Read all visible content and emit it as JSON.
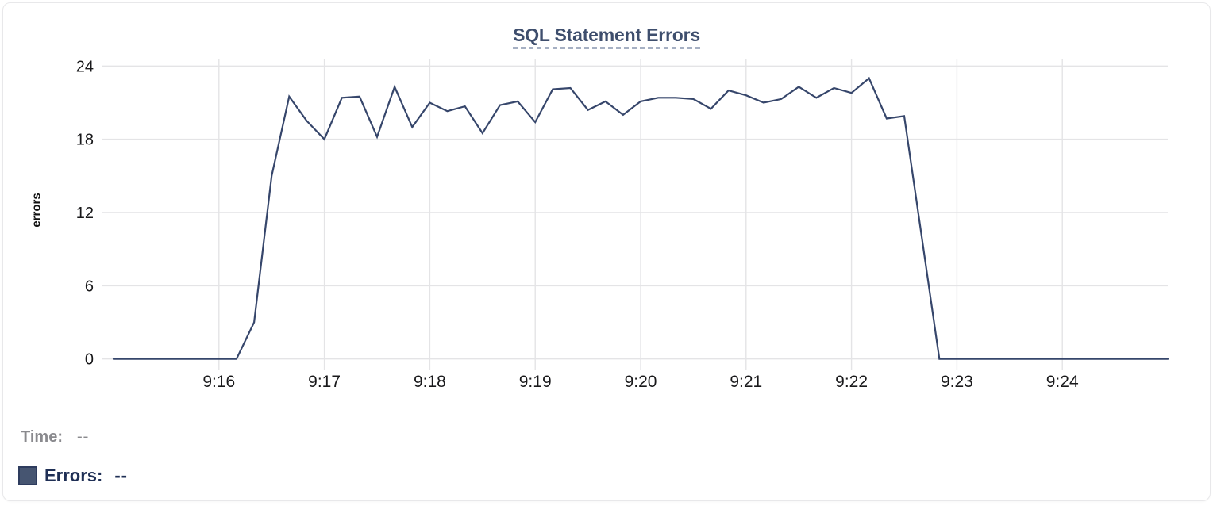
{
  "chart_data": {
    "type": "line",
    "title": "SQL Statement Errors",
    "xlabel": "",
    "ylabel": "errors",
    "ylim": [
      0,
      24
    ],
    "grid": true,
    "y_ticks": [
      0,
      6,
      12,
      18,
      24
    ],
    "x_ticks": [
      {
        "label": "9:16",
        "seconds": 60
      },
      {
        "label": "9:17",
        "seconds": 120
      },
      {
        "label": "9:18",
        "seconds": 180
      },
      {
        "label": "9:19",
        "seconds": 240
      },
      {
        "label": "9:20",
        "seconds": 300
      },
      {
        "label": "9:21",
        "seconds": 360
      },
      {
        "label": "9:22",
        "seconds": 420
      },
      {
        "label": "9:23",
        "seconds": 480
      },
      {
        "label": "9:24",
        "seconds": 540
      }
    ],
    "x_range_seconds": [
      0,
      600
    ],
    "point_interval_seconds": 10,
    "series": [
      {
        "name": "Errors",
        "color": "#36466b",
        "x_offset_seconds": [
          0,
          10,
          20,
          30,
          40,
          50,
          60,
          70,
          80,
          90,
          100,
          110,
          120,
          130,
          140,
          150,
          160,
          170,
          180,
          190,
          200,
          210,
          220,
          230,
          240,
          250,
          260,
          270,
          280,
          290,
          300,
          310,
          320,
          330,
          340,
          350,
          360,
          370,
          380,
          390,
          400,
          410,
          420,
          430,
          440,
          450,
          460,
          470,
          480,
          490,
          500,
          510,
          520,
          530,
          540,
          550,
          560,
          570,
          580,
          590,
          600
        ],
        "values": [
          0,
          0,
          0,
          0,
          0,
          0,
          0,
          0,
          3,
          15,
          21.5,
          19.5,
          18,
          21.4,
          21.5,
          18.2,
          22.3,
          19,
          21,
          20.3,
          20.7,
          18.5,
          20.8,
          21.1,
          19.4,
          22.1,
          22.2,
          20.4,
          21.1,
          20,
          21.1,
          21.4,
          21.4,
          21.3,
          20.5,
          22,
          21.6,
          21,
          21.3,
          22.3,
          21.4,
          22.2,
          21.8,
          23,
          19.7,
          19.9,
          10,
          0,
          0,
          0,
          0,
          0,
          0,
          0,
          0,
          0,
          0,
          0,
          0,
          0,
          0
        ]
      }
    ],
    "legend_position": "bottom-left"
  },
  "legend": {
    "time_label": "Time:",
    "time_value": "--",
    "errors_label": "Errors:",
    "errors_value": "--"
  },
  "colors": {
    "line": "#36466b",
    "swatch_fill": "#465571",
    "swatch_border": "#2e3c5e",
    "grid": "#e4e4e6",
    "tick_label": "#19191b",
    "title": "#3e4e6d",
    "legend_time": "#8a8a8e",
    "legend_errors": "#1f2f55",
    "card_border": "#e8e8ea"
  }
}
